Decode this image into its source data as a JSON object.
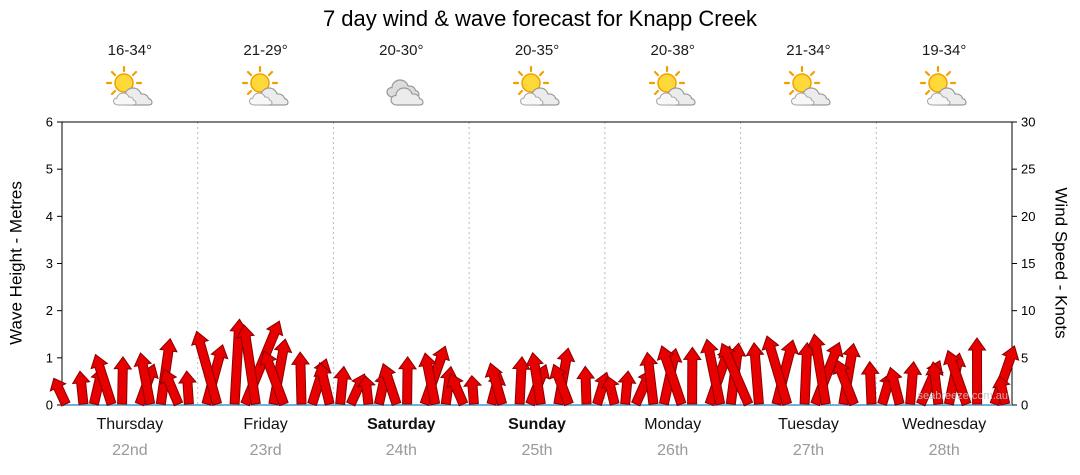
{
  "title": "7 day wind & wave forecast for Knapp Creek",
  "watermark": "seabreeze.com.au",
  "days": [
    {
      "name": "Thursday",
      "date": "22nd",
      "temp": "16-34°",
      "icon": "partly-cloudy",
      "bold": false
    },
    {
      "name": "Friday",
      "date": "23rd",
      "temp": "21-29°",
      "icon": "partly-cloudy",
      "bold": false
    },
    {
      "name": "Saturday",
      "date": "24th",
      "temp": "20-30°",
      "icon": "cloudy",
      "bold": true
    },
    {
      "name": "Sunday",
      "date": "25th",
      "temp": "20-35°",
      "icon": "partly-cloudy",
      "bold": true
    },
    {
      "name": "Monday",
      "date": "26th",
      "temp": "20-38°",
      "icon": "partly-cloudy",
      "bold": false
    },
    {
      "name": "Tuesday",
      "date": "27th",
      "temp": "21-34°",
      "icon": "partly-cloudy",
      "bold": false
    },
    {
      "name": "Wednesday",
      "date": "28th",
      "temp": "19-34°",
      "icon": "partly-cloudy",
      "bold": false
    }
  ],
  "chart_data": {
    "type": "bar",
    "title": "7 day wind & wave forecast for Knapp Creek",
    "categories": [
      "Thursday",
      "Friday",
      "Saturday",
      "Sunday",
      "Monday",
      "Tuesday",
      "Wednesday"
    ],
    "ylabel_left": "Wave Height - Metres",
    "ylabel_right": "Wind Speed - Knots",
    "ylim_left": [
      0,
      6
    ],
    "ylim_right": [
      0,
      30
    ],
    "yticks_left": [
      0,
      1,
      2,
      3,
      4,
      5,
      6
    ],
    "yticks_right": [
      0,
      5,
      10,
      15,
      20,
      25,
      30
    ],
    "grid": "vertical-day-separators",
    "bar_color": "#e60000",
    "series": [
      {
        "name": "Wind Speed (knots)",
        "values": [
          3,
          3.5,
          4,
          5.5,
          5,
          4.5,
          5.5,
          7,
          4,
          3.5,
          6.5,
          8,
          9,
          9.5,
          8.5,
          7,
          6,
          5.5,
          5,
          4.5,
          4,
          3.5,
          3,
          3.5,
          4.5,
          5,
          6.5,
          5.5,
          4,
          3.5,
          3,
          3.5,
          4.5,
          5,
          4.5,
          5.5,
          6,
          4.5,
          4,
          3.5,
          3,
          3.5,
          4,
          5.5,
          6,
          6.5,
          6,
          6.5,
          7,
          6.5,
          7,
          6.5,
          7,
          7.5,
          6.5,
          7,
          7.5,
          6.5,
          5,
          4.5,
          3.5,
          4,
          4.5,
          5,
          4.5,
          5.5,
          6,
          7,
          6.5,
          3
        ]
      }
    ]
  }
}
